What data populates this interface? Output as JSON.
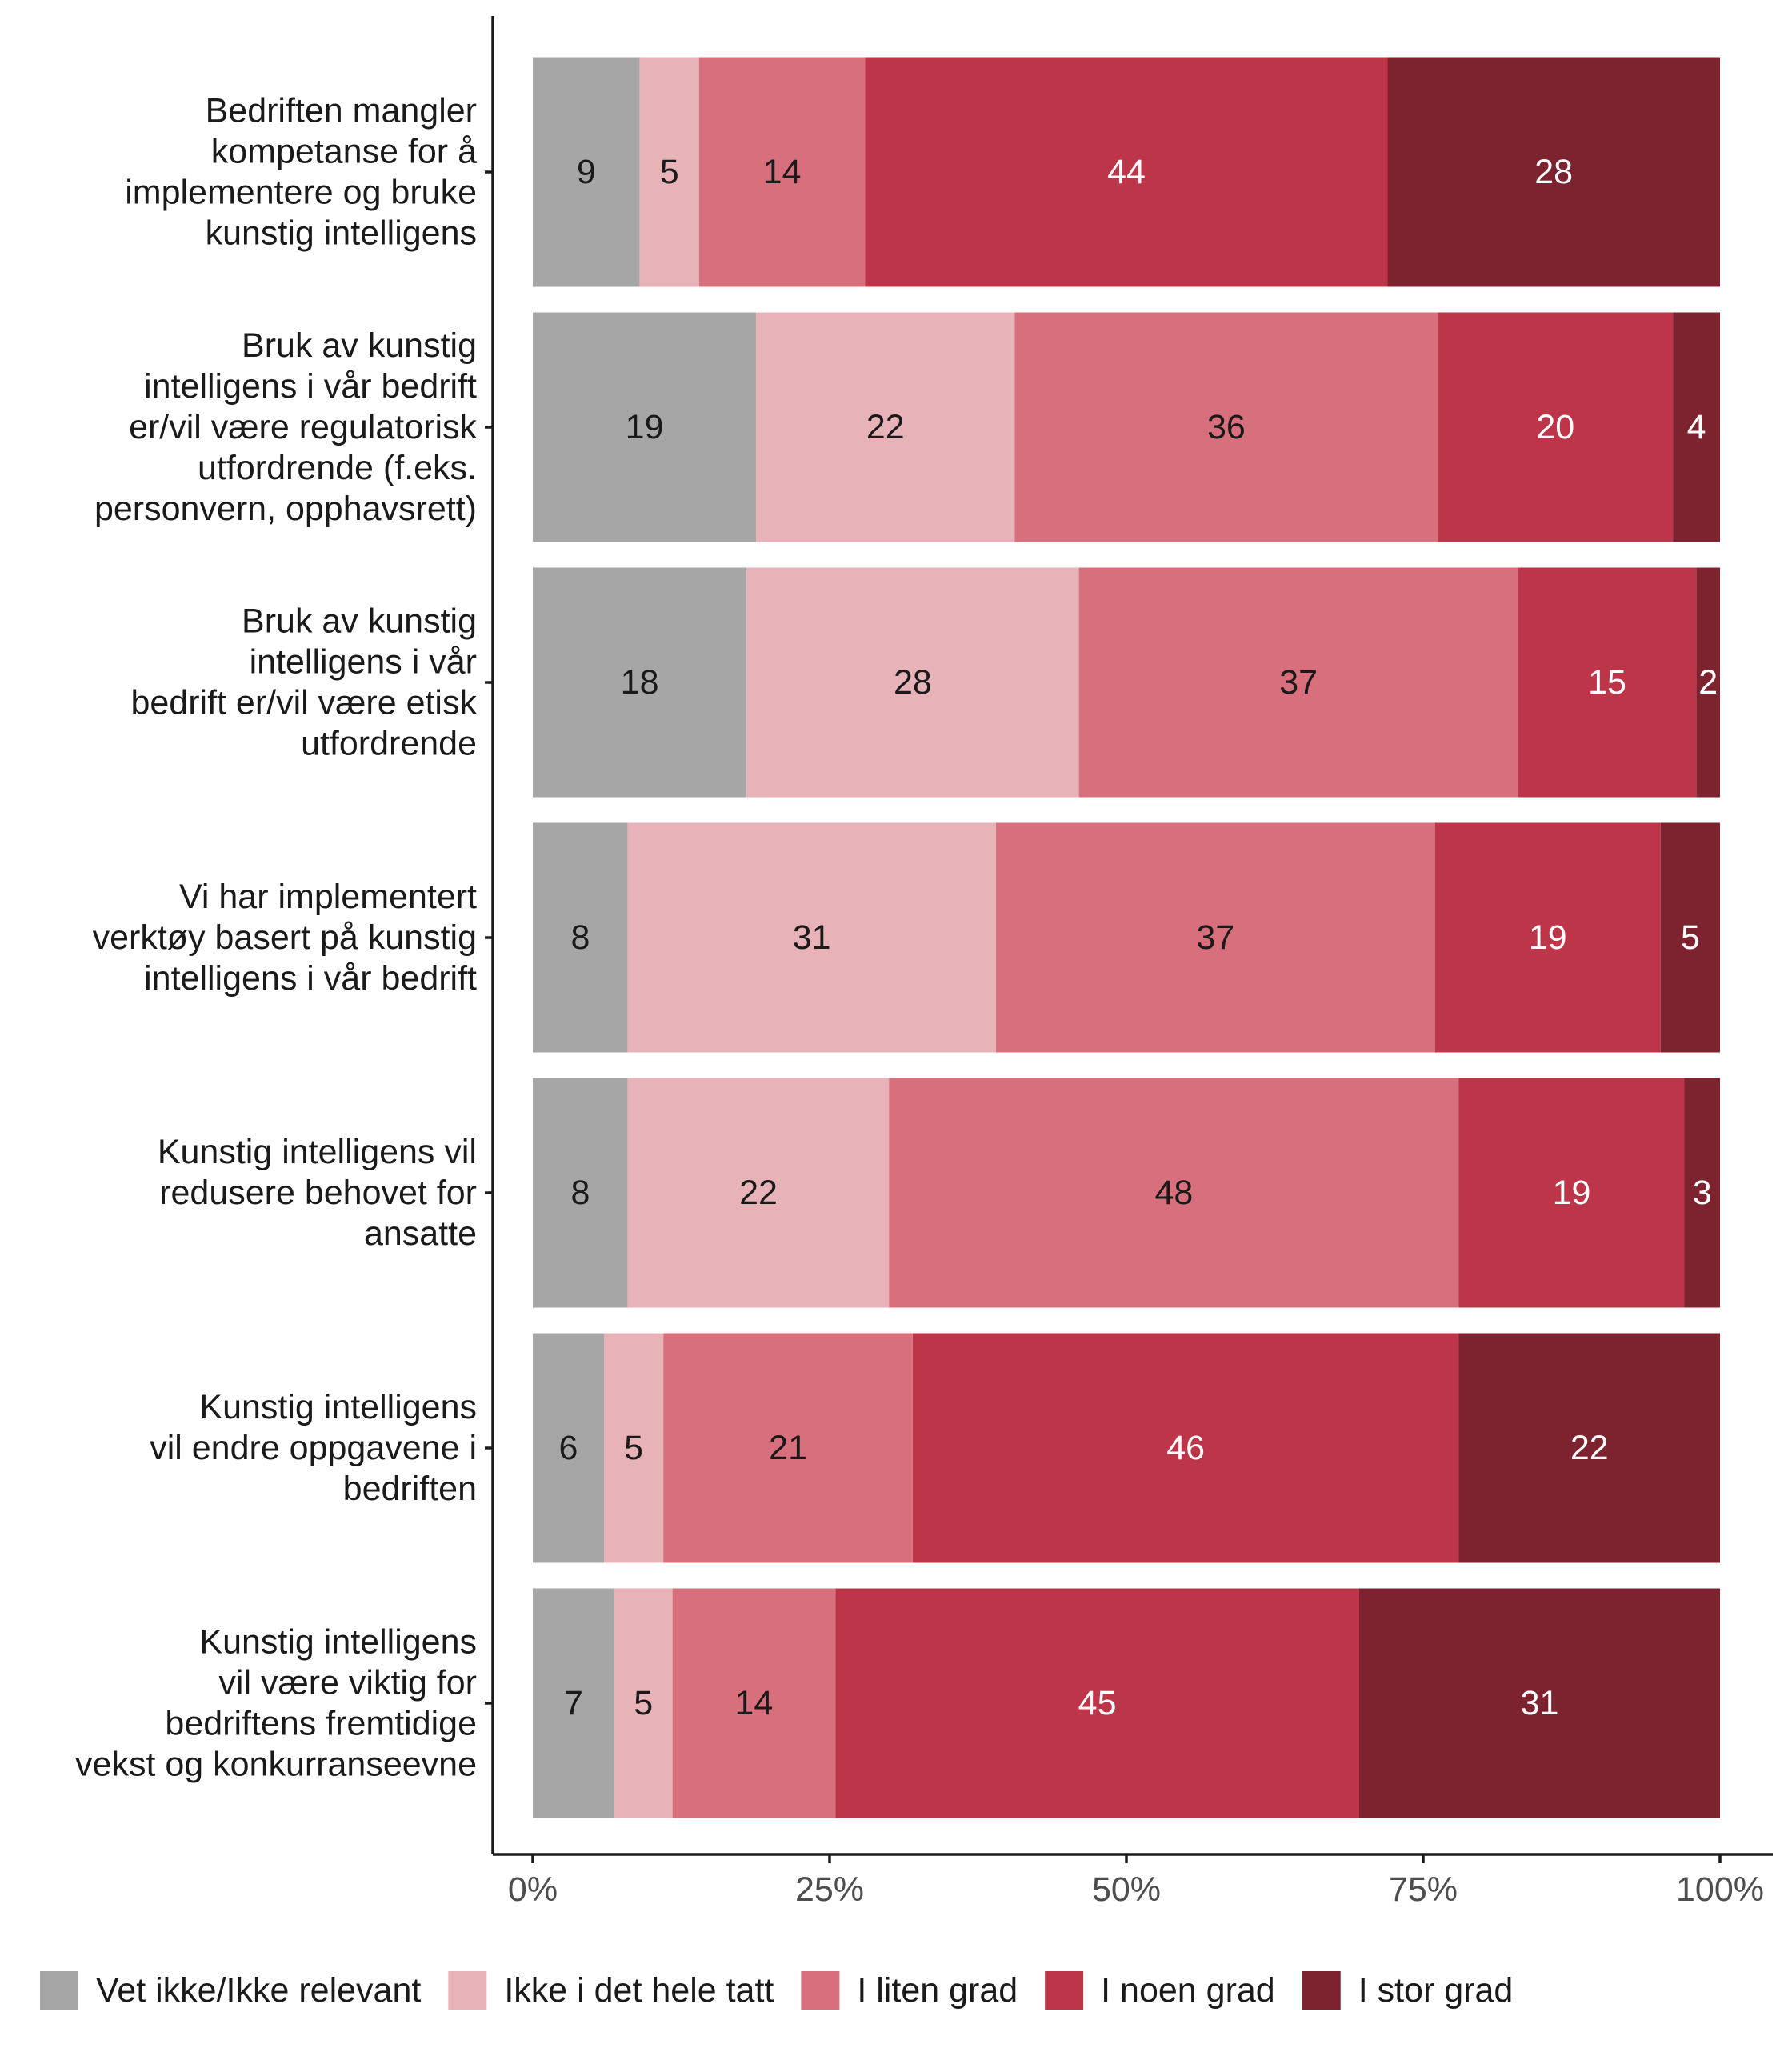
{
  "chart_data": {
    "type": "bar",
    "orientation": "horizontal",
    "stacked": true,
    "normalized": true,
    "categories": [
      [
        "Bedriften mangler",
        "kompetanse for å",
        "implementere og bruke",
        "kunstig intelligens"
      ],
      [
        "Bruk av kunstig",
        "intelligens i vår bedrift",
        "er/vil være regulatorisk",
        "utfordrende (f.eks.",
        "personvern, opphavsrett)"
      ],
      [
        "Bruk av kunstig",
        "intelligens i vår",
        "bedrift er/vil være etisk",
        "utfordrende"
      ],
      [
        "Vi har implementert",
        "verktøy basert på kunstig",
        "intelligens i vår bedrift"
      ],
      [
        "Kunstig intelligens vil",
        "redusere behovet for",
        "ansatte"
      ],
      [
        "Kunstig intelligens",
        "vil endre oppgavene i",
        "bedriften"
      ],
      [
        "Kunstig intelligens",
        "vil være viktig for",
        "bedriftens fremtidige",
        "vekst og konkurranseevne"
      ]
    ],
    "series": [
      {
        "name": "Vet ikke/Ikke relevant",
        "color": "#a6a6a6",
        "label_color": "#1a1a1a",
        "values": [
          9,
          19,
          18,
          8,
          8,
          6,
          7
        ]
      },
      {
        "name": "Ikke i det hele tatt",
        "color": "#e8b3b8",
        "label_color": "#1a1a1a",
        "values": [
          5,
          22,
          28,
          31,
          22,
          5,
          5
        ]
      },
      {
        "name": "I liten grad",
        "color": "#d7707c",
        "label_color": "#1a1a1a",
        "values": [
          14,
          36,
          37,
          37,
          48,
          21,
          14
        ]
      },
      {
        "name": "I noen grad",
        "color": "#bd3549",
        "label_color": "#ffffff",
        "values": [
          44,
          20,
          15,
          19,
          19,
          46,
          45
        ]
      },
      {
        "name": "I stor grad",
        "color": "#7d232f",
        "label_color": "#ffffff",
        "values": [
          28,
          4,
          2,
          5,
          3,
          22,
          31
        ]
      }
    ],
    "xaxis": {
      "ticks": [
        0,
        25,
        50,
        75,
        100
      ],
      "tick_labels": [
        "0%",
        "25%",
        "50%",
        "75%",
        "100%"
      ],
      "range": [
        0,
        100
      ]
    },
    "xlabel": "",
    "ylabel": "",
    "grid": false,
    "legend": "bottom",
    "data_labels": true
  }
}
